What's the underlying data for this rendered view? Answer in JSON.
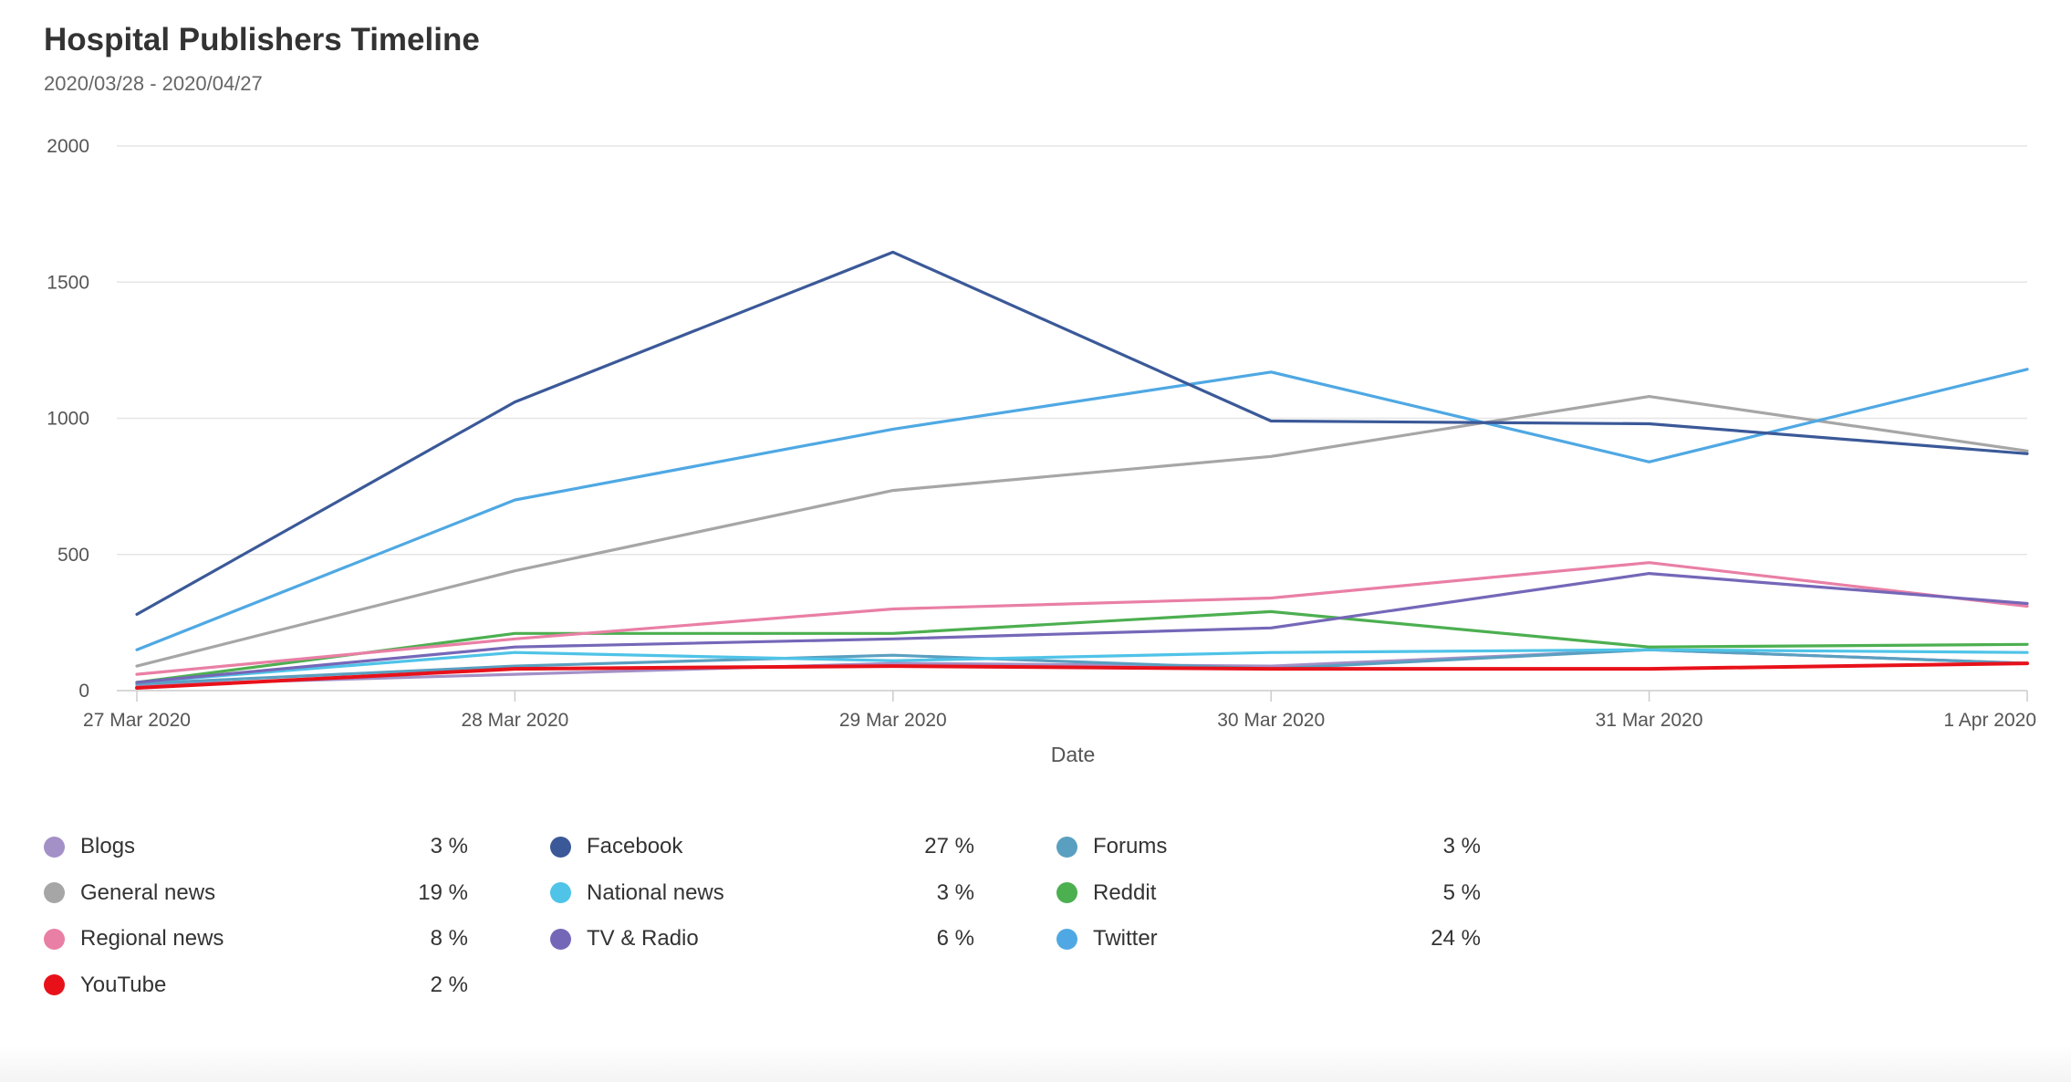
{
  "header": {
    "title": "Hospital Publishers Timeline",
    "subtitle": "2020/03/28 - 2020/04/27"
  },
  "chart_data": {
    "type": "line",
    "title": "Hospital Publishers Timeline",
    "subtitle": "2020/03/28 - 2020/04/27",
    "xlabel": "Date",
    "ylabel": "",
    "categories": [
      "27 Mar 2020",
      "28 Mar 2020",
      "29 Mar 2020",
      "30 Mar 2020",
      "31 Mar 2020",
      "1 Apr 2020"
    ],
    "ylim": [
      0,
      2000
    ],
    "yticks": [
      0,
      500,
      1000,
      1500,
      2000
    ],
    "grid": true,
    "legend_position": "bottom",
    "series": [
      {
        "name": "Blogs",
        "share": "3 %",
        "color": "#a390c7",
        "values": [
          20,
          60,
          100,
          90,
          150,
          100
        ]
      },
      {
        "name": "Facebook",
        "share": "27 %",
        "color": "#3b5998",
        "values": [
          280,
          1060,
          1610,
          990,
          980,
          870
        ]
      },
      {
        "name": "Forums",
        "share": "3 %",
        "color": "#5a9fc0",
        "values": [
          25,
          90,
          130,
          80,
          150,
          100
        ]
      },
      {
        "name": "General news",
        "share": "19 %",
        "color": "#a6a6a6",
        "values": [
          90,
          440,
          735,
          860,
          1080,
          880
        ]
      },
      {
        "name": "National news",
        "share": "3 %",
        "color": "#4fc3e8",
        "values": [
          30,
          140,
          110,
          140,
          150,
          140
        ]
      },
      {
        "name": "Reddit",
        "share": "5 %",
        "color": "#4caf50",
        "values": [
          30,
          210,
          210,
          290,
          160,
          170
        ]
      },
      {
        "name": "Regional news",
        "share": "8 %",
        "color": "#e97fa5",
        "values": [
          60,
          190,
          300,
          340,
          470,
          310
        ]
      },
      {
        "name": "TV & Radio",
        "share": "6 %",
        "color": "#7567b8",
        "values": [
          30,
          160,
          190,
          230,
          430,
          320
        ]
      },
      {
        "name": "Twitter",
        "share": "24 %",
        "color": "#4fa8e3",
        "values": [
          150,
          700,
          960,
          1170,
          840,
          1180
        ]
      },
      {
        "name": "YouTube",
        "share": "2 %",
        "color": "#e8111a",
        "values": [
          10,
          80,
          90,
          80,
          80,
          100
        ]
      }
    ]
  }
}
